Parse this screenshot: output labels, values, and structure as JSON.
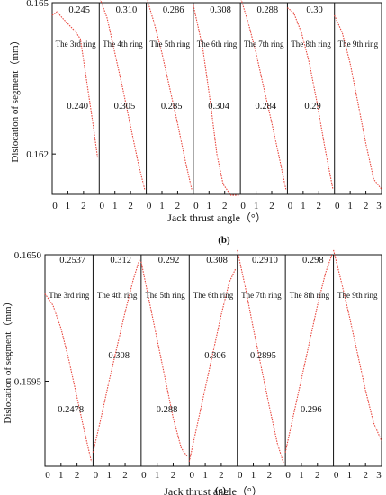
{
  "chart_data": [
    {
      "type": "line",
      "panel_label": "(b)",
      "xlabel": "Jack thrust angle（°）",
      "ylabel": "Dislocation of segment（mm）",
      "ytick_labels": [
        "0.165",
        "0.162"
      ],
      "x_tick_labels": [
        "0",
        "1",
        "2",
        "0",
        "1",
        "2",
        "0",
        "1",
        "2",
        "0",
        "1",
        "2",
        "0",
        "1",
        "2",
        "0",
        "1",
        "2",
        "0",
        "1",
        "2",
        "3"
      ],
      "series_color": "#e8453c",
      "subplots": [
        {
          "name": "The 3rd ring",
          "top_value": "0.245",
          "mid_value": "0.240",
          "points": [
            [
              0,
              0.16475
            ],
            [
              0.3,
              0.16482
            ],
            [
              0.7,
              0.16468
            ],
            [
              1.1,
              0.16455
            ],
            [
              1.5,
              0.16442
            ],
            [
              1.8,
              0.16428
            ],
            [
              2.2,
              0.16345
            ],
            [
              2.6,
              0.1626
            ],
            [
              2.9,
              0.16192
            ]
          ]
        },
        {
          "name": "The 4th ring",
          "top_value": "0.310",
          "mid_value": "0.305",
          "points": [
            [
              0,
              0.16512
            ],
            [
              0.5,
              0.1647
            ],
            [
              1.0,
              0.164
            ],
            [
              1.5,
              0.1633
            ],
            [
              2.0,
              0.16255
            ],
            [
              2.5,
              0.1618
            ],
            [
              2.9,
              0.1613
            ]
          ]
        },
        {
          "name": "The 5th ring",
          "top_value": "0.286",
          "mid_value": "0.285",
          "points": [
            [
              0,
              0.16512
            ],
            [
              0.5,
              0.1646
            ],
            [
              1.0,
              0.164
            ],
            [
              1.5,
              0.1633
            ],
            [
              2.0,
              0.1626
            ],
            [
              2.5,
              0.16185
            ],
            [
              2.9,
              0.1613
            ]
          ]
        },
        {
          "name": "The 6th ring",
          "top_value": "0.308",
          "mid_value": "0.304",
          "points": [
            [
              0,
              0.16495
            ],
            [
              0.6,
              0.1641
            ],
            [
              1.1,
              0.163
            ],
            [
              1.5,
              0.162
            ],
            [
              1.9,
              0.1614
            ],
            [
              2.4,
              0.16118
            ],
            [
              2.9,
              0.16118
            ]
          ]
        },
        {
          "name": "The 7th ring",
          "top_value": "0.288",
          "mid_value": "0.284",
          "points": [
            [
              0,
              0.16512
            ],
            [
              0.5,
              0.1646
            ],
            [
              1.0,
              0.164
            ],
            [
              1.5,
              0.1633
            ],
            [
              2.0,
              0.16262
            ],
            [
              2.5,
              0.1619
            ],
            [
              2.9,
              0.1613
            ]
          ]
        },
        {
          "name": "The 8th ring",
          "top_value": "0.30",
          "mid_value": "0.29",
          "points": [
            [
              0,
              0.1649
            ],
            [
              0.4,
              0.1648
            ],
            [
              0.9,
              0.1644
            ],
            [
              1.4,
              0.1638
            ],
            [
              1.9,
              0.163
            ],
            [
              2.4,
              0.1621
            ],
            [
              2.9,
              0.1613
            ]
          ]
        },
        {
          "name": "The 9th ring",
          "top_value": "",
          "mid_value": "",
          "points": [
            [
              0,
              0.16475
            ],
            [
              0.5,
              0.1644
            ],
            [
              1.0,
              0.1638
            ],
            [
              1.5,
              0.163
            ],
            [
              2.0,
              0.1622
            ],
            [
              2.5,
              0.1615
            ],
            [
              3.0,
              0.1613
            ]
          ]
        }
      ]
    },
    {
      "type": "line",
      "panel_label": "(c)",
      "xlabel": "Jack thrust  angle（°）",
      "ylabel": "Dislocation of segment（mm）",
      "ytick_labels": [
        "0.1650",
        "0.1595"
      ],
      "x_tick_labels": [
        "0",
        "1",
        "2",
        "0",
        "1",
        "2",
        "0",
        "1",
        "2",
        "0",
        "1",
        "2",
        "0",
        "1",
        "2",
        "0",
        "1",
        "2",
        "0",
        "1",
        "2",
        "3"
      ],
      "series_color": "#e8453c",
      "subplots": [
        {
          "name": "The 3rd ring",
          "top_value": "0.2537",
          "mid_value": "0.2478",
          "points": [
            [
              0,
              0.1633
            ],
            [
              0.5,
              0.1628
            ],
            [
              1.0,
              0.1618
            ],
            [
              1.5,
              0.1604
            ],
            [
              2.0,
              0.1588
            ],
            [
              2.5,
              0.1572
            ],
            [
              2.9,
              0.156
            ]
          ]
        },
        {
          "name": "The 4th ring",
          "top_value": "0.312",
          "mid_value": "0.308",
          "points": [
            [
              0,
              0.1564
            ],
            [
              0.5,
              0.1579
            ],
            [
              1.0,
              0.1595
            ],
            [
              1.5,
              0.161
            ],
            [
              2.0,
              0.1625
            ],
            [
              2.5,
              0.1639
            ],
            [
              2.9,
              0.1648
            ]
          ]
        },
        {
          "name": "The 5th ring",
          "top_value": "0.292",
          "mid_value": "0.288",
          "points": [
            [
              0,
              0.1647
            ],
            [
              0.5,
              0.163
            ],
            [
              1.0,
              0.1613
            ],
            [
              1.5,
              0.1596
            ],
            [
              2.0,
              0.1579
            ],
            [
              2.5,
              0.1566
            ],
            [
              2.9,
              0.1562
            ]
          ]
        },
        {
          "name": "The 6th ring",
          "top_value": "0.308",
          "mid_value": "0.306",
          "points": [
            [
              0,
              0.156
            ],
            [
              0.5,
              0.1576
            ],
            [
              1.0,
              0.1592
            ],
            [
              1.5,
              0.1608
            ],
            [
              2.0,
              0.1624
            ],
            [
              2.5,
              0.1638
            ],
            [
              2.9,
              0.1644
            ]
          ]
        },
        {
          "name": "The 7th ring",
          "top_value": "0.2910",
          "mid_value": "0.2895",
          "points": [
            [
              0,
              0.1652
            ],
            [
              0.5,
              0.1636
            ],
            [
              1.0,
              0.1618
            ],
            [
              1.5,
              0.1601
            ],
            [
              2.0,
              0.1584
            ],
            [
              2.5,
              0.1568
            ],
            [
              2.9,
              0.1559
            ]
          ]
        },
        {
          "name": "The 8th ring",
          "top_value": "0.298",
          "mid_value": "0.296",
          "points": [
            [
              0,
              0.1564
            ],
            [
              0.5,
              0.158
            ],
            [
              1.0,
              0.1596
            ],
            [
              1.5,
              0.1612
            ],
            [
              2.0,
              0.1628
            ],
            [
              2.5,
              0.1642
            ],
            [
              2.9,
              0.165
            ]
          ]
        },
        {
          "name": "The 9th ring",
          "top_value": "",
          "mid_value": "",
          "points": [
            [
              0,
              0.1652
            ],
            [
              0.5,
              0.1638
            ],
            [
              1.0,
              0.1623
            ],
            [
              1.5,
              0.1607
            ],
            [
              2.0,
              0.1591
            ],
            [
              2.5,
              0.1577
            ],
            [
              3.0,
              0.1569
            ]
          ]
        }
      ]
    }
  ]
}
